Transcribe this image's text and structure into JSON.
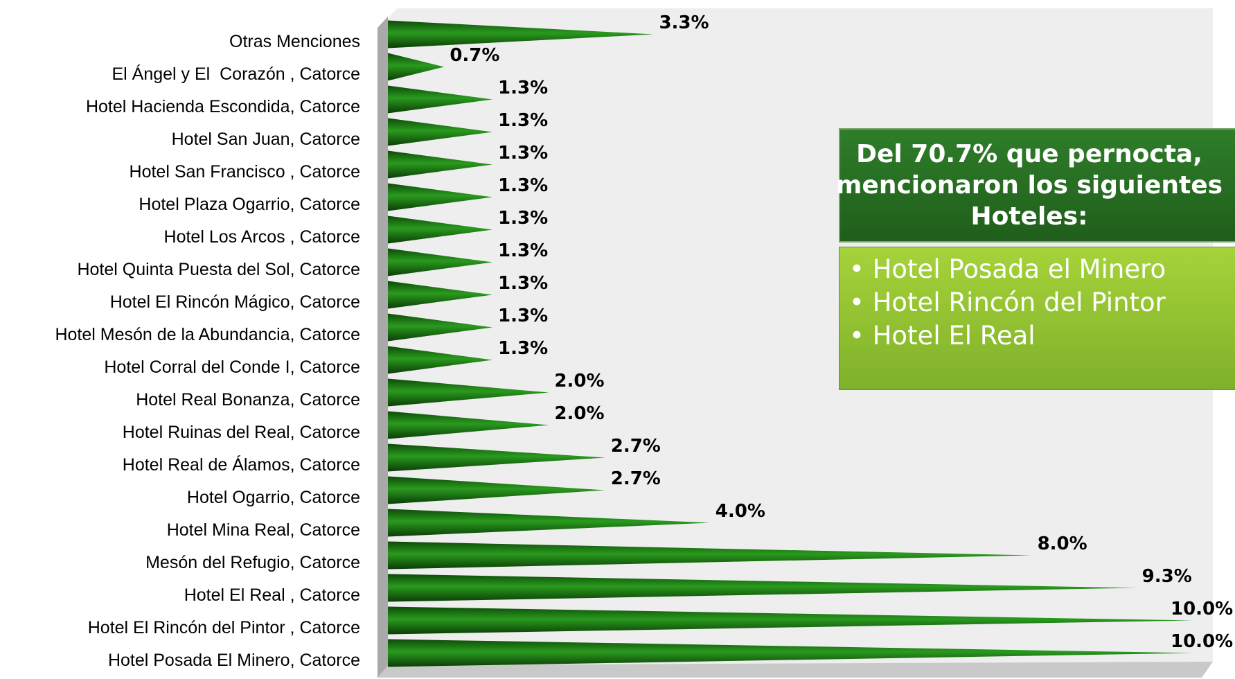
{
  "chart_data": {
    "type": "bar",
    "categories": [
      "Otras Menciones",
      "El Ángel y El  Corazón , Catorce",
      "Hotel Hacienda Escondida, Catorce",
      "Hotel San Juan, Catorce",
      "Hotel San Francisco , Catorce",
      "Hotel Plaza Ogarrio, Catorce",
      "Hotel Los Arcos , Catorce",
      "Hotel Quinta Puesta del Sol, Catorce",
      "Hotel El Rincón Mágico, Catorce",
      "Hotel Mesón de la Abundancia, Catorce",
      "Hotel Corral del Conde I, Catorce",
      "Hotel Real Bonanza, Catorce",
      "Hotel Ruinas del Real, Catorce",
      "Hotel Real de Álamos, Catorce",
      "Hotel Ogarrio, Catorce",
      "Hotel Mina Real, Catorce",
      "Mesón del Refugio, Catorce",
      "Hotel El Real , Catorce",
      "Hotel El Rincón del Pintor , Catorce",
      "Hotel Posada El Minero, Catorce"
    ],
    "values": [
      3.3,
      0.7,
      1.3,
      1.3,
      1.3,
      1.3,
      1.3,
      1.3,
      1.3,
      1.3,
      1.3,
      2.0,
      2.0,
      2.7,
      2.7,
      4.0,
      8.0,
      9.3,
      10.0,
      10.0
    ],
    "value_labels": [
      "3.3%",
      "0.7%",
      "1.3%",
      "1.3%",
      "1.3%",
      "1.3%",
      "1.3%",
      "1.3%",
      "1.3%",
      "1.3%",
      "1.3%",
      "2.0%",
      "2.0%",
      "2.7%",
      "2.7%",
      "4.0%",
      "8.0%",
      "9.3%",
      "10.0%",
      "10.0%"
    ],
    "color": "#1e7a14",
    "xlim": [
      0,
      10
    ]
  },
  "callout": {
    "title": "Del 70.7% que pernocta, mencionaron los siguientes Hoteles:",
    "items": [
      "Hotel Posada el Minero",
      "Hotel Rincón del Pintor",
      "Hotel El Real"
    ]
  }
}
